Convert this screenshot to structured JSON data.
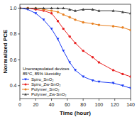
{
  "chart_data": {
    "type": "line",
    "xlabel": "Time (hour)",
    "ylabel": "Normalized PCE",
    "x": [
      0,
      10,
      20,
      30,
      40,
      48,
      55,
      63,
      70,
      80,
      92,
      100,
      118,
      130,
      140
    ],
    "xlim": [
      0,
      140
    ],
    "ylim": [
      0.3,
      1.03
    ],
    "xticks": [
      0,
      20,
      40,
      60,
      80,
      100,
      120,
      140
    ],
    "yticks": [
      0.4,
      0.6,
      0.8,
      {
        "value": 1.0,
        "label": "1.0"
      }
    ],
    "annotations": [
      "Unencapsulated devices",
      "85°C, 85% Humidity"
    ],
    "legend": "lower left",
    "grid": false,
    "series": [
      {
        "name": "Spiro_SnO₂",
        "color": "#1a3af5",
        "marker": "triangle-down",
        "values": [
          1.0,
          0.99,
          0.96,
          0.91,
          0.84,
          0.76,
          0.67,
          0.58,
          0.52,
          0.47,
          0.44,
          0.43,
          0.42,
          0.4,
          0.38
        ]
      },
      {
        "name": "Spiro_Zw-SnO₂",
        "color": "#e82020",
        "marker": "circle",
        "values": [
          1.0,
          1.0,
          0.99,
          0.98,
          0.96,
          0.9,
          0.84,
          0.78,
          0.73,
          0.67,
          0.62,
          0.58,
          0.52,
          0.49,
          0.47
        ]
      },
      {
        "name": "Polymer_SnO₂",
        "color": "#e88020",
        "marker": "circle",
        "values": [
          1.0,
          1.0,
          1.0,
          0.99,
          0.98,
          0.97,
          0.95,
          0.93,
          0.91,
          0.89,
          0.88,
          0.87,
          0.86,
          0.85,
          0.83
        ]
      },
      {
        "name": "Polymer_Zw-SnO₂",
        "color": "#404040",
        "marker": "triangle-up",
        "values": [
          1.0,
          1.0,
          1.0,
          1.0,
          1.0,
          1.0,
          1.0,
          0.99,
          0.98,
          0.99,
          0.99,
          0.98,
          0.98,
          0.97,
          0.96
        ]
      }
    ]
  }
}
